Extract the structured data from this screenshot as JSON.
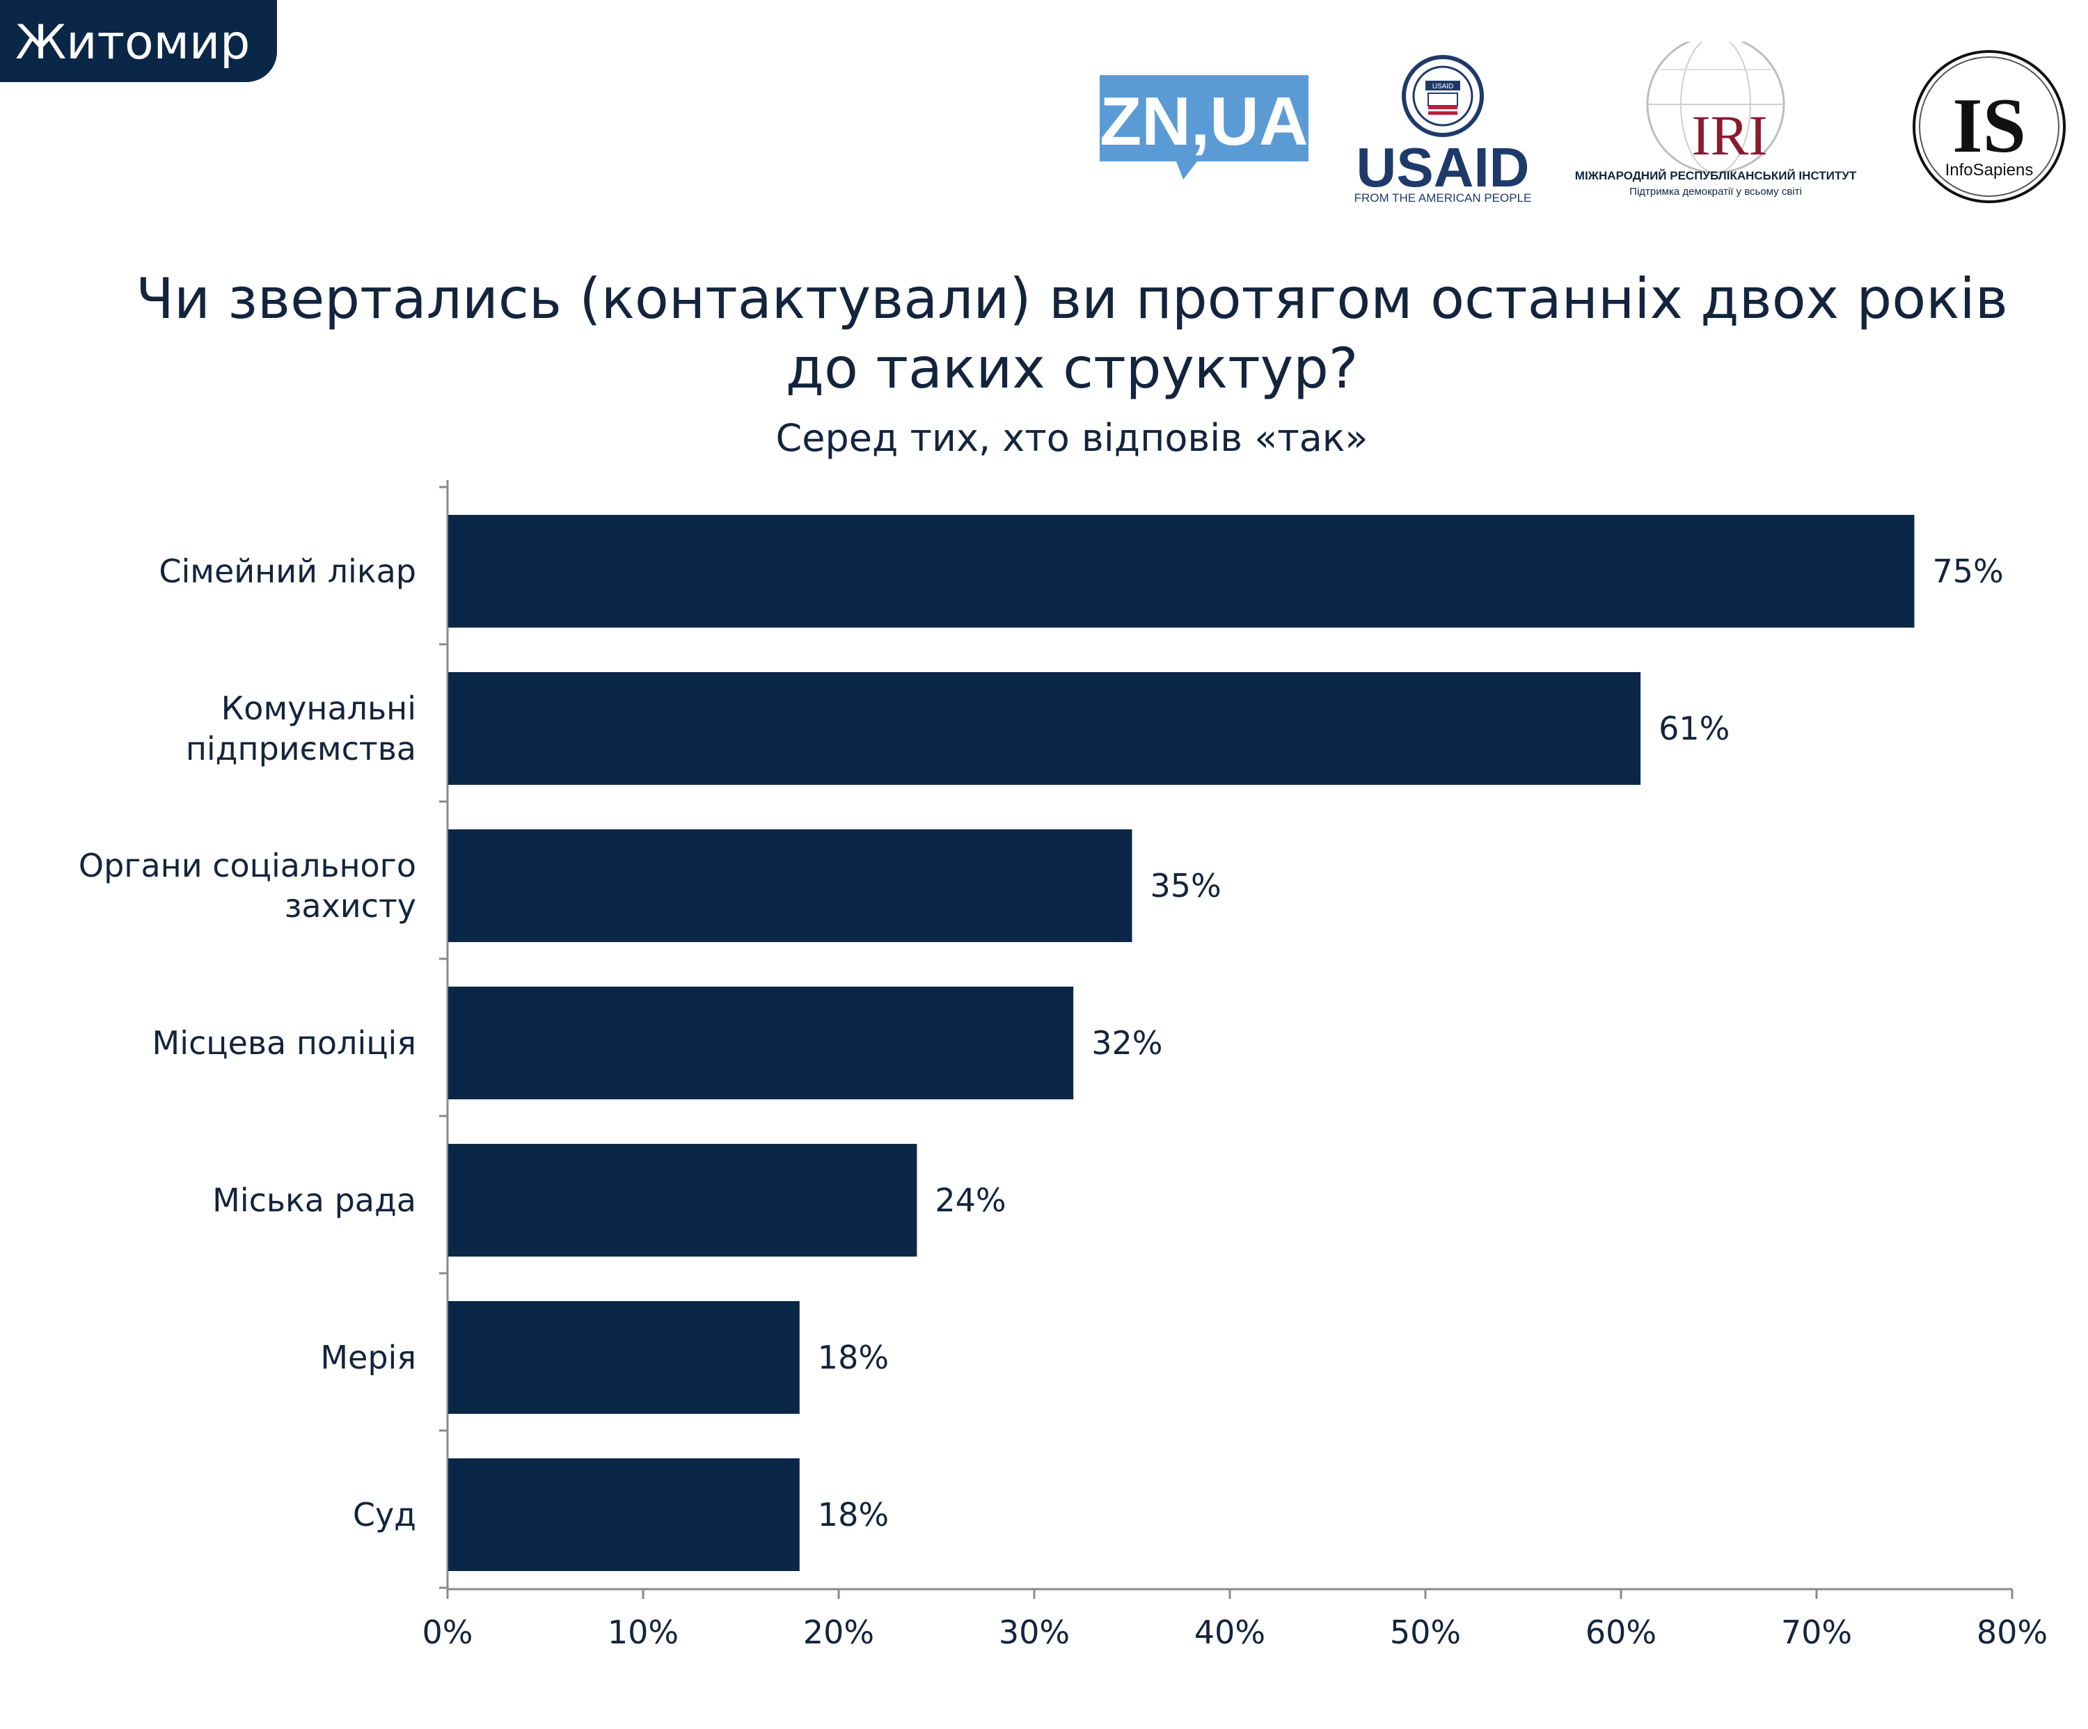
{
  "header": {
    "city": "Житомир",
    "logos": {
      "znua": "ZN,UA",
      "usaid_main": "USAID",
      "usaid_tagline": "FROM THE AMERICAN PEOPLE",
      "usaid_seal_text": "USAID",
      "iri_main": "IRI",
      "iri_line1": "МІЖНАРОДНИЙ РЕСПУБЛІКАНСЬКИЙ ІНСТИТУТ",
      "iri_line2": "Підтримка демократії у всьому світі",
      "is_main": "IS",
      "is_sub": "InfoSapiens"
    }
  },
  "colors": {
    "bar": "#0b2748",
    "text": "#13243d",
    "tab": "#0b2748",
    "axis": "#8a8a8a"
  },
  "chart_data": {
    "type": "bar",
    "orientation": "horizontal",
    "title_lines": [
      "Чи звертались (контактували) ви протягом останніх двох років",
      "до таких структур?"
    ],
    "subtitle": "Серед тих, хто відповів «так»",
    "categories": [
      [
        "Сімейний лікар"
      ],
      [
        "Комунальні",
        "підприємства"
      ],
      [
        "Органи соціального",
        "захисту"
      ],
      [
        "Місцева поліція"
      ],
      [
        "Міська рада"
      ],
      [
        "Мерія"
      ],
      [
        "Суд"
      ]
    ],
    "values": [
      75,
      61,
      35,
      32,
      24,
      18,
      18
    ],
    "value_labels": [
      "75%",
      "61%",
      "35%",
      "32%",
      "24%",
      "18%",
      "18%"
    ],
    "xlim": [
      0,
      80
    ],
    "xticks": [
      0,
      10,
      20,
      30,
      40,
      50,
      60,
      70,
      80
    ],
    "xtick_labels": [
      "0%",
      "10%",
      "20%",
      "30%",
      "40%",
      "50%",
      "60%",
      "70%",
      "80%"
    ],
    "grid": false,
    "legend": "none"
  }
}
